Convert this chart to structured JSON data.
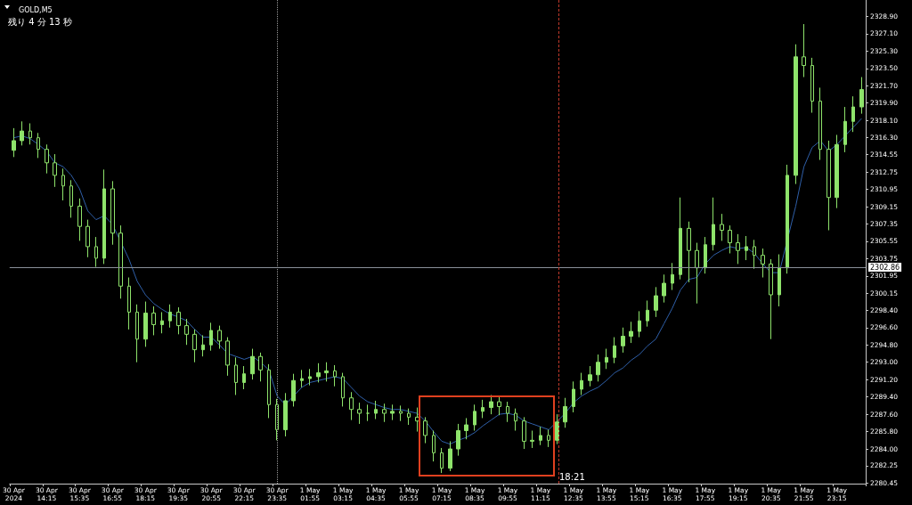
{
  "chart_data": {
    "type": "candlestick",
    "title": "GOLD,M5",
    "subtitle": "残り 4 分 13 秒",
    "annotations": [
      "18:21"
    ],
    "categories": [
      "30 Apr 2024",
      null,
      null,
      null,
      "30 Apr 14:15",
      null,
      null,
      null,
      "30 Apr 15:35",
      null,
      null,
      null,
      "30 Apr 16:55",
      null,
      null,
      null,
      "30 Apr 18:15",
      null,
      null,
      null,
      "30 Apr 19:35",
      null,
      null,
      null,
      "30 Apr 20:55",
      null,
      null,
      null,
      "30 Apr 22:15",
      null,
      null,
      null,
      "30 Apr 23:35",
      null,
      null,
      null,
      "1 May 01:55",
      null,
      null,
      null,
      "1 May 03:15",
      null,
      null,
      null,
      "1 May 04:35",
      null,
      null,
      null,
      "1 May 05:55",
      null,
      null,
      null,
      "1 May 07:15",
      null,
      null,
      null,
      "1 May 08:35",
      null,
      null,
      null,
      "1 May 09:55",
      null,
      null,
      null,
      "1 May 11:15",
      null,
      null,
      null,
      "1 May 12:35",
      null,
      null,
      null,
      "1 May 13:55",
      null,
      null,
      null,
      "1 May 15:15",
      null,
      null,
      null,
      "1 May 16:35",
      null,
      null,
      null,
      "1 May 17:55",
      null,
      null,
      null,
      "1 May 19:15",
      null,
      null,
      null,
      "1 May 20:35",
      null,
      null,
      null,
      "1 May 21:55",
      null,
      null,
      null,
      "1 May 23:15",
      null,
      null,
      null
    ],
    "color": "#8ee36b",
    "ohlc": [
      [
        2315.0,
        2317.3,
        2314.3,
        2316.0
      ],
      [
        2316.0,
        2318.0,
        2315.5,
        2317.0
      ],
      [
        2317.0,
        2317.8,
        2315.6,
        2316.3
      ],
      [
        2316.3,
        2316.8,
        2314.2,
        2315.1
      ],
      [
        2315.1,
        2315.6,
        2312.6,
        2313.7
      ],
      [
        2313.7,
        2314.6,
        2311.2,
        2312.4
      ],
      [
        2312.4,
        2313.1,
        2309.8,
        2311.3
      ],
      [
        2311.3,
        2311.9,
        2308.0,
        2309.2
      ],
      [
        2309.2,
        2310.0,
        2305.6,
        2307.1
      ],
      [
        2307.1,
        2307.8,
        2303.9,
        2305.0
      ],
      [
        2305.0,
        2306.0,
        2302.9,
        2303.8
      ],
      [
        2303.8,
        2313.0,
        2303.2,
        2311.0
      ],
      [
        2311.0,
        2311.8,
        2305.2,
        2306.4
      ],
      [
        2306.4,
        2307.2,
        2299.6,
        2300.9
      ],
      [
        2300.9,
        2301.8,
        2296.4,
        2298.2
      ],
      [
        2298.2,
        2299.0,
        2293.0,
        2295.4
      ],
      [
        2295.4,
        2299.3,
        2294.6,
        2298.1
      ],
      [
        2298.1,
        2298.8,
        2295.8,
        2296.9
      ],
      [
        2296.9,
        2298.2,
        2296.0,
        2297.3
      ],
      [
        2297.3,
        2299.0,
        2296.6,
        2298.2
      ],
      [
        2298.2,
        2298.7,
        2295.9,
        2296.8
      ],
      [
        2296.8,
        2297.5,
        2294.8,
        2295.9
      ],
      [
        2295.9,
        2296.4,
        2293.0,
        2294.3
      ],
      [
        2294.3,
        2295.8,
        2293.6,
        2294.8
      ],
      [
        2294.8,
        2297.1,
        2294.2,
        2296.3
      ],
      [
        2296.3,
        2296.8,
        2294.4,
        2295.2
      ],
      [
        2295.2,
        2295.6,
        2291.6,
        2292.7
      ],
      [
        2292.7,
        2293.5,
        2289.6,
        2290.9
      ],
      [
        2290.9,
        2292.6,
        2290.2,
        2291.8
      ],
      [
        2291.8,
        2294.4,
        2291.2,
        2293.6
      ],
      [
        2293.6,
        2294.0,
        2291.0,
        2292.2
      ],
      [
        2292.2,
        2292.8,
        2287.2,
        2288.6
      ],
      [
        2288.6,
        2289.2,
        2284.9,
        2286.0
      ],
      [
        2286.0,
        2289.8,
        2285.3,
        2289.0
      ],
      [
        2289.0,
        2291.8,
        2288.4,
        2291.1
      ],
      [
        2291.1,
        2292.2,
        2290.4,
        2291.3
      ],
      [
        2291.3,
        2292.3,
        2290.6,
        2291.5
      ],
      [
        2291.5,
        2292.9,
        2290.9,
        2291.9
      ],
      [
        2291.9,
        2293.0,
        2291.0,
        2292.1
      ],
      [
        2292.1,
        2292.7,
        2290.5,
        2291.5
      ],
      [
        2291.5,
        2291.9,
        2288.4,
        2289.3
      ],
      [
        2289.3,
        2289.9,
        2287.0,
        2288.1
      ],
      [
        2288.1,
        2288.8,
        2286.6,
        2287.7
      ],
      [
        2287.7,
        2288.6,
        2286.9,
        2287.7
      ],
      [
        2287.7,
        2289.0,
        2287.1,
        2288.1
      ],
      [
        2288.1,
        2288.7,
        2286.8,
        2287.7
      ],
      [
        2287.7,
        2288.6,
        2287.0,
        2287.9
      ],
      [
        2287.9,
        2288.5,
        2286.9,
        2287.7
      ],
      [
        2287.7,
        2288.2,
        2286.5,
        2287.3
      ],
      [
        2287.3,
        2288.3,
        2285.8,
        2286.9
      ],
      [
        2286.9,
        2287.3,
        2284.6,
        2285.4
      ],
      [
        2285.4,
        2285.9,
        2282.7,
        2283.6
      ],
      [
        2283.6,
        2284.1,
        2281.5,
        2282.0
      ],
      [
        2282.0,
        2284.8,
        2281.7,
        2284.0
      ],
      [
        2284.0,
        2286.6,
        2283.3,
        2285.9
      ],
      [
        2285.9,
        2287.2,
        2285.0,
        2286.5
      ],
      [
        2286.5,
        2288.6,
        2285.9,
        2287.9
      ],
      [
        2287.9,
        2289.1,
        2287.2,
        2288.3
      ],
      [
        2288.3,
        2289.6,
        2287.6,
        2288.9
      ],
      [
        2288.9,
        2289.4,
        2287.5,
        2288.4
      ],
      [
        2288.4,
        2288.9,
        2286.8,
        2287.7
      ],
      [
        2287.7,
        2288.2,
        2285.9,
        2286.9
      ],
      [
        2286.9,
        2287.3,
        2284.0,
        2284.8
      ],
      [
        2284.8,
        2285.9,
        2284.1,
        2284.9
      ],
      [
        2284.9,
        2286.3,
        2284.4,
        2285.4
      ],
      [
        2285.4,
        2286.0,
        2284.2,
        2284.9
      ],
      [
        2284.9,
        2287.6,
        2284.5,
        2286.8
      ],
      [
        2286.8,
        2289.3,
        2286.2,
        2288.4
      ],
      [
        2288.4,
        2291.0,
        2287.8,
        2290.2
      ],
      [
        2290.2,
        2291.9,
        2289.6,
        2291.1
      ],
      [
        2291.1,
        2292.6,
        2290.5,
        2291.7
      ],
      [
        2291.7,
        2293.8,
        2291.0,
        2293.0
      ],
      [
        2293.0,
        2294.4,
        2292.3,
        2293.5
      ],
      [
        2293.5,
        2295.6,
        2292.9,
        2294.7
      ],
      [
        2294.7,
        2296.6,
        2294.0,
        2295.7
      ],
      [
        2295.7,
        2297.2,
        2295.0,
        2296.2
      ],
      [
        2296.2,
        2298.3,
        2295.6,
        2297.3
      ],
      [
        2297.3,
        2299.4,
        2296.7,
        2298.4
      ],
      [
        2298.4,
        2300.8,
        2297.7,
        2299.9
      ],
      [
        2299.9,
        2302.1,
        2299.2,
        2301.2
      ],
      [
        2301.2,
        2303.3,
        2300.5,
        2302.1
      ],
      [
        2302.1,
        2310.1,
        2301.6,
        2306.9
      ],
      [
        2306.9,
        2307.6,
        2301.3,
        2304.6
      ],
      [
        2304.6,
        2305.4,
        2299.1,
        2302.8
      ],
      [
        2302.8,
        2306.0,
        2302.2,
        2305.2
      ],
      [
        2305.2,
        2310.1,
        2304.6,
        2307.3
      ],
      [
        2307.3,
        2308.4,
        2305.6,
        2306.7
      ],
      [
        2306.7,
        2307.2,
        2304.3,
        2305.4
      ],
      [
        2305.4,
        2306.3,
        2303.2,
        2304.6
      ],
      [
        2304.6,
        2306.1,
        2303.6,
        2305.0
      ],
      [
        2305.0,
        2305.7,
        2302.7,
        2304.1
      ],
      [
        2304.1,
        2304.8,
        2301.8,
        2303.2
      ],
      [
        2303.2,
        2303.7,
        2295.4,
        2300.0
      ],
      [
        2300.0,
        2304.2,
        2298.8,
        2302.8
      ],
      [
        2302.8,
        2313.5,
        2302.2,
        2312.4
      ],
      [
        2312.4,
        2326.0,
        2311.5,
        2324.7
      ],
      [
        2324.7,
        2328.1,
        2322.6,
        2323.8
      ],
      [
        2323.8,
        2324.6,
        2318.9,
        2320.1
      ],
      [
        2320.1,
        2321.5,
        2314.0,
        2315.1
      ],
      [
        2315.1,
        2316.0,
        2306.7,
        2310.1
      ],
      [
        2310.1,
        2316.6,
        2309.0,
        2315.6
      ],
      [
        2315.6,
        2319.5,
        2314.8,
        2318.0
      ],
      [
        2318.0,
        2320.6,
        2316.9,
        2319.5
      ],
      [
        2319.5,
        2322.6,
        2318.8,
        2321.3
      ]
    ],
    "series": [
      {
        "type": "line",
        "color": "#2f5fa8",
        "values": [
          2316.3,
          2316.5,
          2316.2,
          2315.6,
          2314.9,
          2313.7,
          2313.3,
          2312.4,
          2311.0,
          2308.7,
          2307.8,
          2308.2,
          2307.3,
          null,
          2303.7,
          2301.4,
          2300.0,
          2299.1,
          2298.5,
          2298.0,
          2297.7,
          2297.3,
          2296.4,
          2295.6,
          2295.6,
          2294.8,
          2293.9,
          2293.6,
          2293.3,
          2293.6,
          2293.0,
          2292.2,
          2289.5,
          2288.6,
          2289.5,
          2290.4,
          2290.9,
          2291.1,
          2291.3,
          2291.5,
          2291.3,
          2290.4,
          2289.5,
          2288.9,
          2288.6,
          2288.3,
          2288.1,
          2288.1,
          2287.9,
          2287.7,
          2286.9,
          2285.8,
          2284.8,
          2284.5,
          2284.9,
          2285.2,
          2285.7,
          2286.4,
          2287.0,
          2287.6,
          2287.7,
          2287.5,
          2286.9,
          2286.6,
          2286.3,
          2286.0,
          null,
          2287.7,
          2288.8,
          2289.5,
          2290.0,
          2290.4,
          2291.1,
          2291.9,
          2292.4,
          2293.2,
          2293.8,
          2294.7,
          2295.4,
          2297.0,
          2298.6,
          2300.5,
          2301.6,
          2301.8,
          2303.2,
          2304.1,
          2304.6,
          2305.0,
          2304.8,
          2304.9,
          2304.3,
          2303.2,
          2302.3,
          2302.3,
          null,
          2309.2,
          2313.3,
          2315.3,
          2316.0,
          2314.9,
          2315.6,
          2316.5,
          2317.4,
          2318.3
        ]
      }
    ],
    "ylim": [
      2280.4,
      2330.6
    ],
    "yticks": [
      {
        "value": 2280.45,
        "label": "2280.45"
      },
      {
        "value": 2282.25,
        "label": "2282.25"
      },
      {
        "value": 2284.0,
        "label": "2284.00"
      },
      {
        "value": 2285.8,
        "label": "2285.80"
      },
      {
        "value": 2287.6,
        "label": "2287.60"
      },
      {
        "value": 2289.4,
        "label": "2289.40"
      },
      {
        "value": 2291.2,
        "label": "2291.20"
      },
      {
        "value": 2293.0,
        "label": "2293.00"
      },
      {
        "value": 2294.8,
        "label": "2294.80"
      },
      {
        "value": 2296.6,
        "label": "2296.60"
      },
      {
        "value": 2298.4,
        "label": "2298.40"
      },
      {
        "value": 2300.15,
        "label": "2300.15"
      },
      {
        "value": 2301.95,
        "label": "2301.95"
      },
      {
        "value": 2303.75,
        "label": "2303.75"
      },
      {
        "value": 2305.55,
        "label": "2305.55"
      },
      {
        "value": 2307.35,
        "label": "2307.35"
      },
      {
        "value": 2309.15,
        "label": "2309.15"
      },
      {
        "value": 2310.95,
        "label": "2310.95"
      },
      {
        "value": 2312.75,
        "label": "2312.75"
      },
      {
        "value": 2314.55,
        "label": "2314.55"
      },
      {
        "value": 2316.3,
        "label": "2316.30"
      },
      {
        "value": 2318.1,
        "label": "2318.10"
      },
      {
        "value": 2319.9,
        "label": "2319.90"
      },
      {
        "value": 2321.7,
        "label": "2321.70"
      },
      {
        "value": 2323.5,
        "label": "2323.50"
      },
      {
        "value": 2325.3,
        "label": "2325.30"
      },
      {
        "value": 2327.1,
        "label": "2327.10"
      },
      {
        "value": 2328.9,
        "label": "2328.90"
      }
    ],
    "ref_lines": [
      {
        "axis": "y",
        "value": 2302.86,
        "label": "2302.86",
        "color": "#8a9099",
        "line_style": "solid"
      },
      {
        "axis": "x",
        "value": "30 Apr 23:35",
        "label": null,
        "color": "#9a9a9a",
        "line_style": "dotted"
      }
    ]
  }
}
